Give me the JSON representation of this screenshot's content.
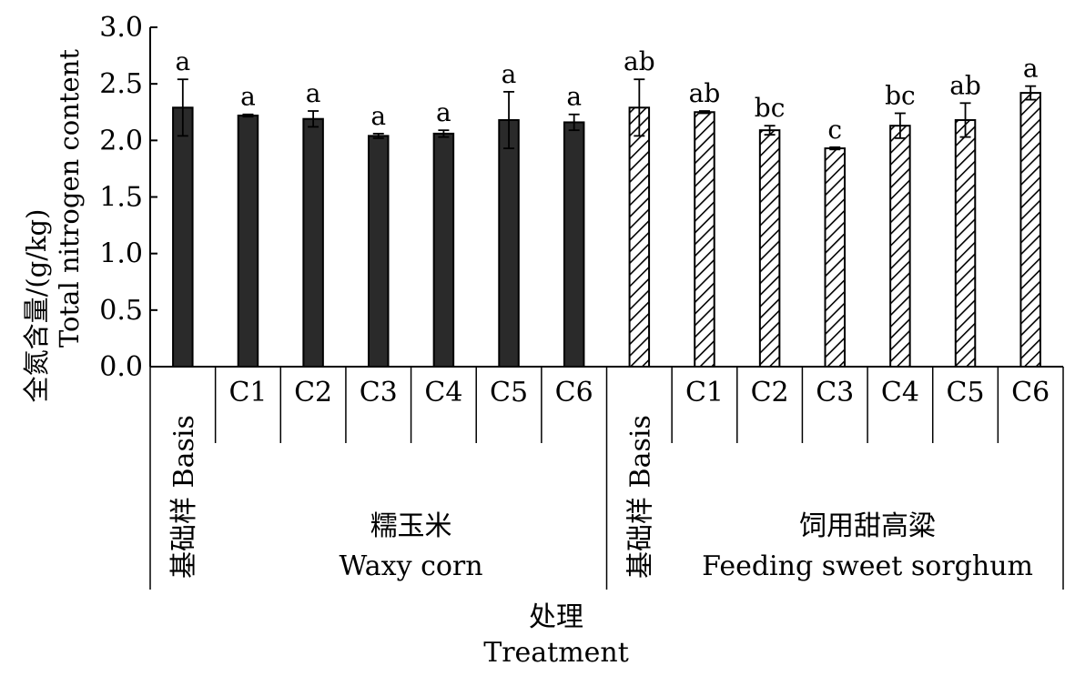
{
  "chart_data": {
    "type": "bar",
    "ylabel_cn": "全氮含量/(g/kg)",
    "ylabel_en": "Total nitrogen content",
    "xlabel_cn": "处理",
    "xlabel_en": "Treatment",
    "ylim": [
      0,
      3.0
    ],
    "yticks": [
      "0.0",
      "0.5",
      "1.0",
      "1.5",
      "2.0",
      "2.5",
      "3.0"
    ],
    "grid": false,
    "groups": [
      {
        "name_cn": "糯玉米",
        "name_en": "Waxy corn",
        "fill": "solid",
        "categories": [
          "基础样 Basis",
          "C1",
          "C2",
          "C3",
          "C4",
          "C5",
          "C6"
        ],
        "values": [
          2.29,
          2.22,
          2.19,
          2.04,
          2.06,
          2.18,
          2.16
        ],
        "errors": [
          0.25,
          0.01,
          0.07,
          0.02,
          0.03,
          0.25,
          0.07
        ],
        "letters": [
          "a",
          "a",
          "a",
          "a",
          "a",
          "a",
          "a"
        ]
      },
      {
        "name_cn": "饲用甜高粱",
        "name_en": "Feeding sweet sorghum",
        "fill": "hatched",
        "categories": [
          "基础样 Basis",
          "C1",
          "C2",
          "C3",
          "C4",
          "C5",
          "C6"
        ],
        "values": [
          2.29,
          2.25,
          2.09,
          1.93,
          2.13,
          2.18,
          2.42
        ],
        "errors": [
          0.25,
          0.01,
          0.04,
          0.01,
          0.11,
          0.15,
          0.06
        ],
        "letters": [
          "ab",
          "ab",
          "bc",
          "c",
          "bc",
          "ab",
          "a"
        ]
      }
    ],
    "colors": {
      "bar_solid": "#2a2a2a",
      "hatch": "#000000",
      "axis": "#000000"
    }
  }
}
